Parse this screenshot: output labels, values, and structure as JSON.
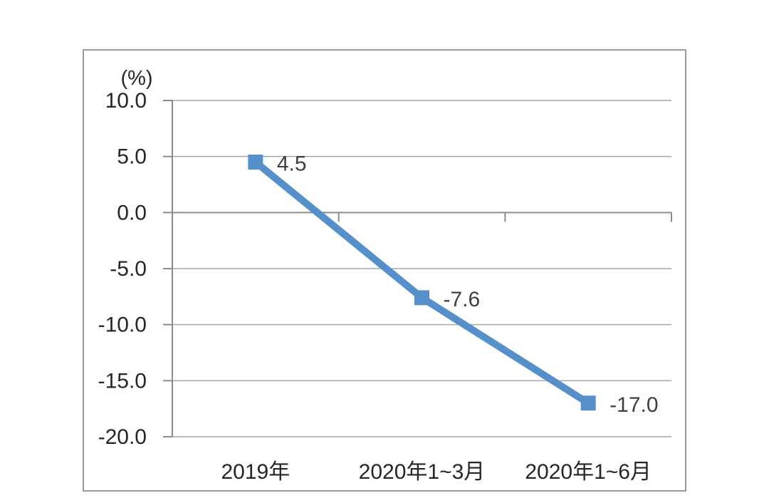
{
  "chart_data": {
    "type": "line",
    "title": "",
    "unit_label": "(%)",
    "categories": [
      "2019年",
      "2020年1~3月",
      "2020年1~6月"
    ],
    "values": [
      4.5,
      -7.6,
      -17.0
    ],
    "data_labels": [
      "4.5",
      "-7.6",
      "-17.0"
    ],
    "y_ticks": [
      10.0,
      5.0,
      0.0,
      -5.0,
      -10.0,
      -15.0,
      -20.0
    ],
    "y_tick_labels": [
      "10.0",
      "5.0",
      "0.0",
      "-5.0",
      "-10.0",
      "-15.0",
      "-20.0"
    ],
    "ylim": [
      -20,
      10
    ],
    "xlabel": "",
    "ylabel": "(%)",
    "grid": true,
    "legend": "none",
    "marker_shape": "square",
    "colors": {
      "line": "#5590CB",
      "marker": "#5590CB",
      "gridline": "#A6A6A6",
      "axis": "#8C8C8C",
      "border": "#9B9B9B",
      "tick_text": "#262626",
      "data_label_text": "#3F3F3F",
      "background": "#FFFFFF"
    }
  }
}
